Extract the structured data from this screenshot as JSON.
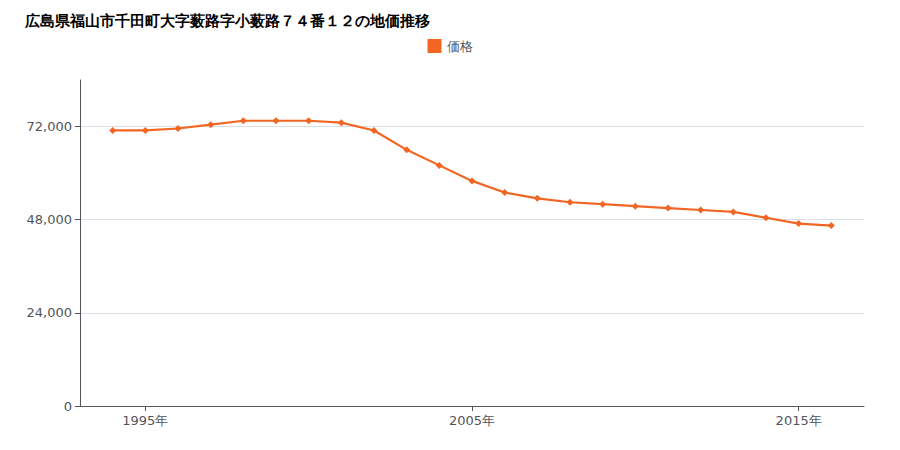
{
  "chart_data": {
    "type": "line",
    "title": "広島県福山市千田町大字薮路字小薮路７４番１２の地価推移",
    "x": [
      1994,
      1995,
      1996,
      1997,
      1998,
      1999,
      2000,
      2001,
      2002,
      2003,
      2004,
      2005,
      2006,
      2007,
      2008,
      2009,
      2010,
      2011,
      2012,
      2013,
      2014,
      2015,
      2016
    ],
    "series": [
      {
        "name": "価格",
        "color": "#f26522",
        "marker": "diamond",
        "values": [
          71000,
          71000,
          71500,
          72500,
          73500,
          73500,
          73500,
          73000,
          71000,
          66000,
          62000,
          58000,
          55000,
          53500,
          52500,
          52000,
          51500,
          51000,
          50500,
          50000,
          48500,
          47000,
          46500
        ]
      }
    ],
    "xlim": [
      1993,
      2017
    ],
    "xticks": [
      {
        "value": 1995,
        "label": "1995年"
      },
      {
        "value": 2005,
        "label": "2005年"
      },
      {
        "value": 2015,
        "label": "2015年"
      }
    ],
    "ylim": [
      0,
      84000
    ],
    "yticks": [
      0,
      {
        "value": 24000,
        "label": "24,000"
      },
      {
        "value": 48000,
        "label": "48,000"
      },
      {
        "value": 72000,
        "label": "72,000"
      }
    ],
    "grid": true,
    "legend": "top"
  }
}
